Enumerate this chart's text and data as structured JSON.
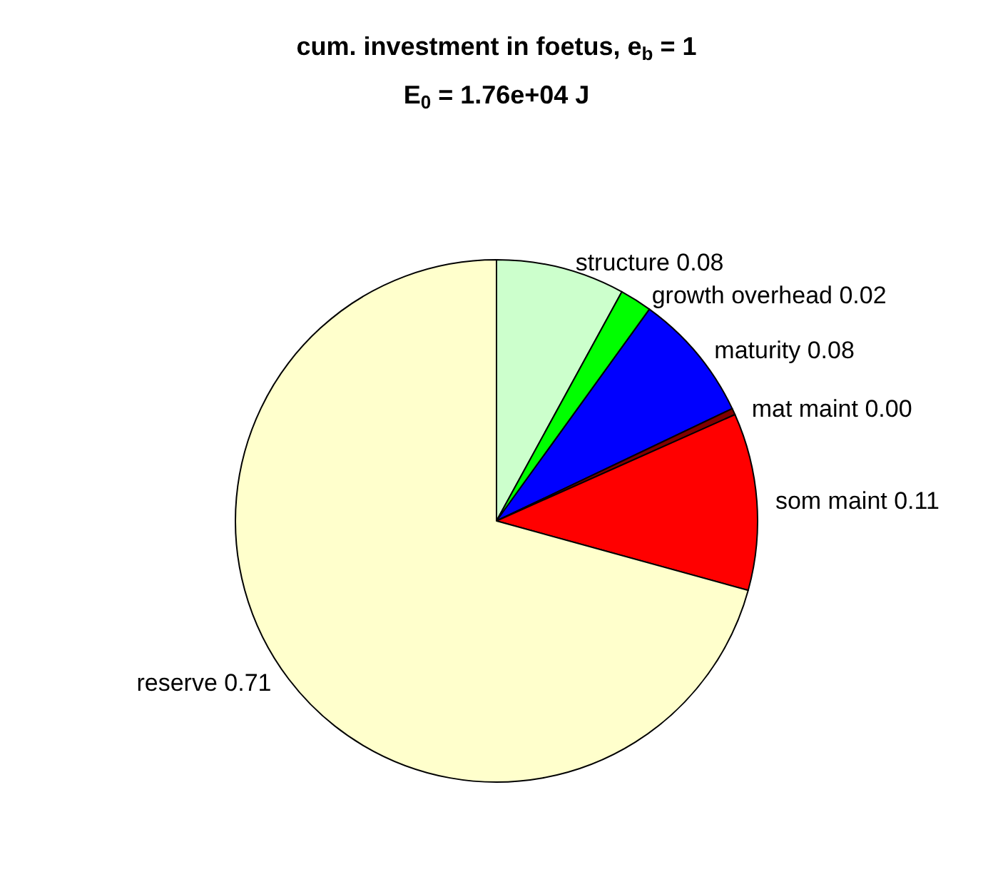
{
  "chart_data": {
    "type": "pie",
    "title": "cum. investment in foetus, e$_{b}$ = 1",
    "subtitle": "E$_{0}$ = 1.76e+04 J",
    "categories": [
      "structure",
      "growth overhead",
      "maturity",
      "mat maint",
      "som maint",
      "reserve"
    ],
    "values": [
      0.08,
      0.02,
      0.08,
      0.004,
      0.11,
      0.71
    ],
    "value_labels": [
      "0.08",
      "0.02",
      "0.08",
      "0.00",
      "0.11",
      "0.71"
    ],
    "colors": [
      "#ccffcc",
      "#00ff00",
      "#0000ff",
      "#800000",
      "#ff0000",
      "#ffffcc"
    ],
    "legend": false
  }
}
